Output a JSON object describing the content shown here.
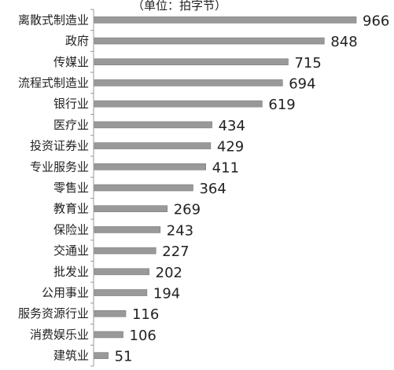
{
  "chart_data": {
    "type": "bar",
    "orientation": "horizontal",
    "unit_note": "（单位：拍字节）",
    "categories": [
      "离散式制造业",
      "政府",
      "传媒业",
      "流程式制造业",
      "银行业",
      "医疗业",
      "投资证券业",
      "专业服务业",
      "零售业",
      "教育业",
      "保险业",
      "交通业",
      "批发业",
      "公用事业",
      "服务资源行业",
      "消费娱乐业",
      "建筑业"
    ],
    "values": [
      966,
      848,
      715,
      694,
      619,
      434,
      429,
      411,
      364,
      269,
      243,
      227,
      202,
      194,
      116,
      106,
      51
    ],
    "data_labels": [
      "966",
      "848",
      "715",
      "694",
      "619",
      "434",
      "429",
      "411",
      "364",
      "269",
      "243",
      "227",
      "202",
      "194",
      "116",
      "106",
      "51"
    ],
    "xlim": [
      0,
      966
    ],
    "grid": false,
    "legend": "none",
    "colors": {
      "bar": "#999999",
      "bar_edge": "#7a7a7a",
      "axis": "#9a9a9a",
      "text": "#222222"
    }
  }
}
